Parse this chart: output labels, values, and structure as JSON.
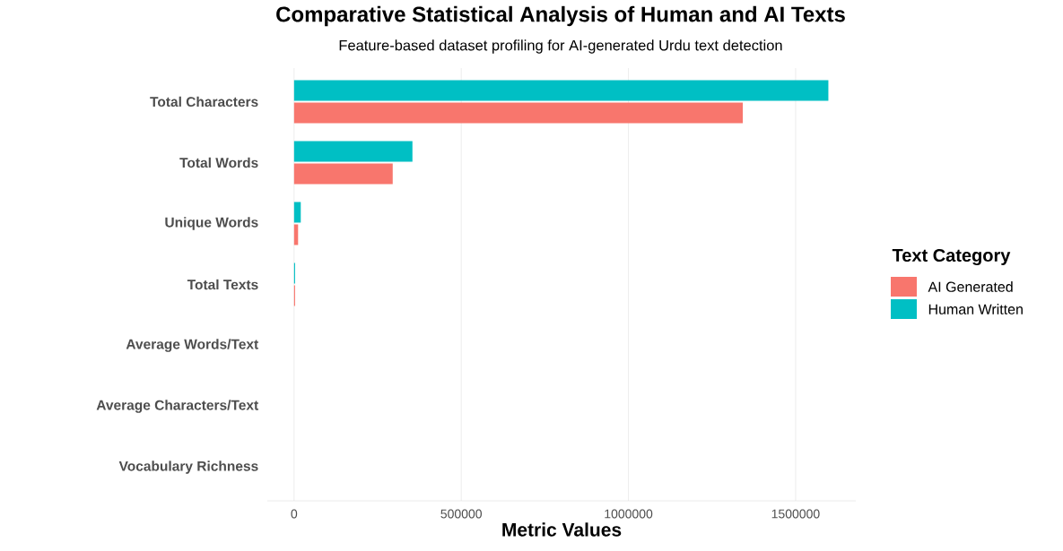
{
  "chart_data": {
    "type": "bar",
    "orientation": "horizontal",
    "title": "Comparative Statistical Analysis of Human and AI Texts",
    "subtitle": "Feature-based dataset profiling for AI-generated Urdu text detection",
    "xlabel": "Metric Values",
    "legend_title": "Text Category",
    "categories": [
      "Total Characters",
      "Total Words",
      "Unique Words",
      "Total Texts",
      "Average Words/Text",
      "Average Characters/Text",
      "Vocabulary Richness"
    ],
    "series": [
      {
        "name": "AI Generated",
        "color": "#f8766d",
        "values": [
          1342000,
          295000,
          12000,
          3000,
          0,
          0,
          0
        ]
      },
      {
        "name": "Human Written",
        "color": "#00bfc4",
        "values": [
          1598000,
          354000,
          20000,
          3000,
          0,
          0,
          0
        ]
      }
    ],
    "xlim": [
      -80000,
      1680000
    ],
    "xticks": [
      0,
      500000,
      1000000,
      1500000
    ],
    "grid": "x",
    "legend": "right"
  }
}
